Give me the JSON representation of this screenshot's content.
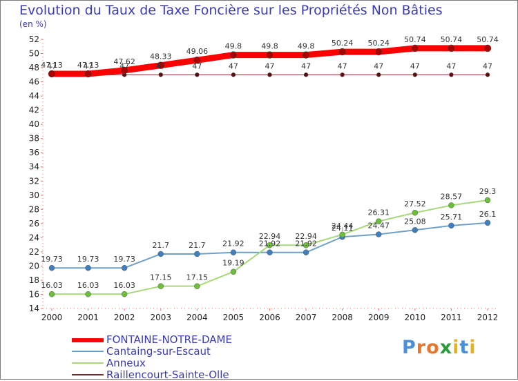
{
  "title": "Evolution du Taux de Taxe Foncière sur les Propriétés Non Bâties",
  "subtitle": "(en %)",
  "brand": {
    "letters": [
      "P",
      "r",
      "o",
      "x",
      "i",
      "t",
      "i"
    ],
    "colors": [
      "#4a90d9",
      "#e8762b",
      "#e8762b",
      "#2a9d3a",
      "#e3b21c",
      "#4a90d9",
      "#e3b21c"
    ]
  },
  "chart_data": {
    "type": "line",
    "title": "Evolution du Taux de Taxe Foncière sur les Propriétés Non Bâties",
    "ylabel": "(en %)",
    "xlabel": "",
    "x": [
      "2000",
      "2001",
      "2002",
      "2003",
      "2004",
      "2005",
      "2006",
      "2007",
      "2008",
      "2009",
      "2010",
      "2011",
      "2012"
    ],
    "ylim": [
      14,
      52
    ],
    "yticks": [
      14,
      16,
      18,
      20,
      22,
      24,
      26,
      28,
      30,
      32,
      34,
      36,
      38,
      40,
      42,
      44,
      46,
      48,
      50,
      52
    ],
    "series": [
      {
        "name": "FONTAINE-NOTRE-DAME",
        "color": "#ff0000",
        "values": [
          47.13,
          47.13,
          47.62,
          48.33,
          49.06,
          49.8,
          49.8,
          49.8,
          50.24,
          50.24,
          50.74,
          50.74,
          50.74
        ],
        "labels": [
          "47.13",
          "47.13",
          "47.62",
          "48.33",
          "49.06",
          "49.8",
          "49.8",
          "49.8",
          "50.24",
          "50.24",
          "50.74",
          "50.74",
          "50.74"
        ]
      },
      {
        "name": "Cantaing-sur-Escaut",
        "color": "#6fa0c8",
        "values": [
          19.73,
          19.73,
          19.73,
          21.7,
          21.7,
          21.92,
          21.92,
          21.92,
          24.11,
          24.47,
          25.08,
          25.71,
          26.1
        ],
        "labels": [
          "19.73",
          "19.73",
          "19.73",
          "21.7",
          "21.7",
          "21.92",
          "21.92",
          "21.92",
          "24.11",
          "24.47",
          "25.08",
          "25.71",
          "26.1"
        ]
      },
      {
        "name": "Anneux",
        "color": "#a6d97a",
        "values": [
          16.03,
          16.03,
          16.03,
          17.15,
          17.15,
          19.19,
          22.94,
          22.94,
          24.44,
          26.31,
          27.52,
          28.57,
          29.3
        ],
        "labels": [
          "16.03",
          "16.03",
          "16.03",
          "17.15",
          "17.15",
          "19.19",
          "22.94",
          "22.94",
          "24.44",
          "26.31",
          "27.52",
          "28.57",
          "29.3"
        ]
      },
      {
        "name": "Raillencourt-Sainte-Olle",
        "color": "#7a2a2a",
        "values": [
          47,
          47,
          47,
          47,
          47,
          47,
          47,
          47,
          47,
          47,
          47,
          47,
          47
        ],
        "labels": [
          "47",
          "47",
          "47",
          "47",
          "47",
          "47",
          "47",
          "47",
          "47",
          "47",
          "47",
          "47",
          "47"
        ]
      }
    ]
  }
}
